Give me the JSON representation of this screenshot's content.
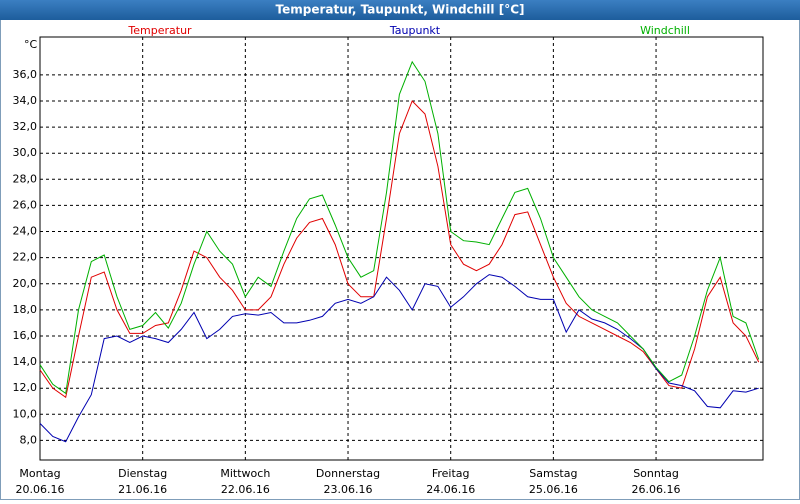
{
  "chart_data": {
    "type": "line",
    "title": "Temperatur, Taupunkt, Windchill [°C]",
    "y_label": "°C",
    "x": [
      0,
      3,
      6,
      9,
      12,
      15,
      18,
      21,
      24,
      27,
      30,
      33,
      36,
      39,
      42,
      45,
      48,
      51,
      54,
      57,
      60,
      63,
      66,
      69,
      72,
      75,
      78,
      81,
      84,
      87,
      90,
      93,
      96,
      99,
      102,
      105,
      108,
      111,
      114,
      117,
      120,
      123,
      126,
      129,
      132,
      135,
      138,
      141,
      144,
      147,
      150,
      153,
      156,
      159,
      162,
      165,
      168
    ],
    "xlim": [
      0,
      169
    ],
    "xticks": [
      {
        "value": 0,
        "label": "Montag"
      },
      {
        "value": 24,
        "label": "Dienstag"
      },
      {
        "value": 48,
        "label": "Mittwoch"
      },
      {
        "value": 72,
        "label": "Donnerstag"
      },
      {
        "value": 96,
        "label": "Freitag"
      },
      {
        "value": 120,
        "label": "Samstag"
      },
      {
        "value": 144,
        "label": "Sonntag"
      }
    ],
    "xtick_dates": [
      "20.06.16",
      "21.06.16",
      "22.06.16",
      "23.06.16",
      "24.06.16",
      "25.06.16",
      "26.06.16"
    ],
    "ylim": [
      6.5,
      38.9
    ],
    "yticks": [
      {
        "value": 8,
        "label": "8,0"
      },
      {
        "value": 10,
        "label": "10,0"
      },
      {
        "value": 12,
        "label": "12,0"
      },
      {
        "value": 14,
        "label": "14,0"
      },
      {
        "value": 16,
        "label": "16,0"
      },
      {
        "value": 18,
        "label": "18,0"
      },
      {
        "value": 20,
        "label": "20,0"
      },
      {
        "value": 22,
        "label": "22,0"
      },
      {
        "value": 24,
        "label": "24,0"
      },
      {
        "value": 26,
        "label": "26,0"
      },
      {
        "value": 28,
        "label": "28,0"
      },
      {
        "value": 30,
        "label": "30,0"
      },
      {
        "value": 32,
        "label": "32,0"
      },
      {
        "value": 34,
        "label": "34,0"
      },
      {
        "value": 36,
        "label": "36,0"
      }
    ],
    "grid": true,
    "series": [
      {
        "name": "Temperatur",
        "color": "#e00000",
        "values": [
          13.4,
          12.0,
          11.3,
          16.0,
          20.5,
          20.9,
          18.0,
          16.2,
          16.2,
          16.8,
          17.0,
          19.5,
          22.5,
          22.0,
          20.5,
          19.5,
          18.0,
          18.0,
          19.0,
          21.5,
          23.5,
          24.7,
          25.0,
          23.0,
          20.0,
          19.0,
          19.0,
          25.0,
          31.5,
          34.0,
          33.0,
          29.0,
          23.0,
          21.5,
          21.0,
          21.5,
          23.0,
          25.3,
          25.5,
          23.0,
          20.5,
          18.5,
          17.5,
          17.0,
          16.5,
          16.0,
          15.5,
          14.8,
          13.5,
          12.2,
          12.0,
          15.0,
          19.0,
          20.5,
          17.0,
          16.0,
          14.0
        ]
      },
      {
        "name": "Taupunkt",
        "color": "#0000b0",
        "values": [
          9.3,
          8.3,
          7.9,
          9.8,
          11.5,
          15.8,
          16.0,
          15.5,
          16.0,
          15.8,
          15.5,
          16.5,
          17.8,
          15.8,
          16.5,
          17.5,
          17.7,
          17.6,
          17.8,
          17.0,
          17.0,
          17.2,
          17.5,
          18.5,
          18.8,
          18.5,
          19.0,
          20.5,
          19.5,
          18.0,
          20.0,
          19.8,
          18.2,
          19.0,
          20.0,
          20.7,
          20.5,
          19.8,
          19.0,
          18.8,
          18.8,
          16.3,
          18.0,
          17.3,
          17.0,
          16.5,
          15.8,
          15.0,
          13.5,
          12.4,
          12.2,
          11.8,
          10.6,
          10.5,
          11.8,
          11.7,
          12.0
        ]
      },
      {
        "name": "Windchill",
        "color": "#00b000",
        "values": [
          13.8,
          12.3,
          11.6,
          18.0,
          21.7,
          22.2,
          19.0,
          16.5,
          16.8,
          17.8,
          16.6,
          18.5,
          21.5,
          24.0,
          22.5,
          21.5,
          19.0,
          20.5,
          19.8,
          22.5,
          25.0,
          26.5,
          26.8,
          24.5,
          22.0,
          20.5,
          21.0,
          27.0,
          34.5,
          37.0,
          35.5,
          31.5,
          24.0,
          23.3,
          23.2,
          23.0,
          25.0,
          27.0,
          27.3,
          25.0,
          22.0,
          20.5,
          19.0,
          18.0,
          17.5,
          17.0,
          16.0,
          15.0,
          13.6,
          12.5,
          13.0,
          16.0,
          19.5,
          22.0,
          17.5,
          17.0,
          14.2
        ]
      }
    ]
  }
}
